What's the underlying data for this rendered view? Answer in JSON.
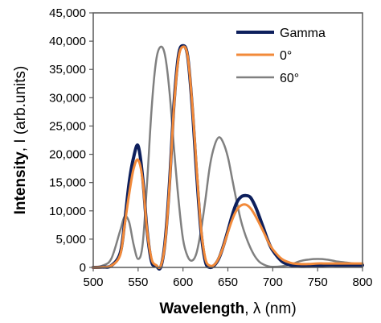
{
  "chart_data": {
    "type": "line",
    "title": "",
    "xlabel": "Wavelength",
    "xlabel_symbol": ", λ (nm)",
    "ylabel": "Intensity",
    "ylabel_symbol": ", I (arb.units)",
    "xlim": [
      500,
      800
    ],
    "ylim": [
      0,
      45000
    ],
    "x_ticks": [
      500,
      550,
      600,
      650,
      700,
      750,
      800
    ],
    "y_ticks": [
      0,
      5000,
      10000,
      15000,
      20000,
      25000,
      30000,
      35000,
      40000,
      45000
    ],
    "y_tick_labels": [
      "0",
      "5,000",
      "10,000",
      "15,000",
      "20,000",
      "25,000",
      "30,000",
      "35,000",
      "40,000",
      "45,000"
    ],
    "grid": false,
    "legend_position": "top-right",
    "x": [
      500,
      510,
      520,
      530,
      535,
      540,
      545,
      550,
      555,
      560,
      565,
      570,
      575,
      580,
      585,
      590,
      595,
      600,
      605,
      610,
      615,
      620,
      625,
      630,
      635,
      640,
      645,
      650,
      655,
      660,
      665,
      670,
      675,
      680,
      685,
      690,
      695,
      700,
      710,
      720,
      730,
      740,
      750,
      760,
      770,
      780,
      790,
      800
    ],
    "series": [
      {
        "name": "Gamma",
        "color": "#0d1f5c",
        "values": [
          0,
          50,
          300,
          2500,
          8000,
          15000,
          19500,
          21500,
          16000,
          6500,
          1000,
          300,
          0,
          4500,
          15000,
          29000,
          37500,
          39200,
          37500,
          29000,
          17000,
          6500,
          1000,
          0,
          400,
          1600,
          3800,
          6500,
          9300,
          11500,
          12500,
          12700,
          12400,
          11000,
          9000,
          6800,
          4600,
          3000,
          1100,
          400,
          200,
          200,
          300,
          400,
          400,
          400,
          400,
          400
        ]
      },
      {
        "name": "0°",
        "color": "#f28a3a",
        "values": [
          0,
          50,
          300,
          2200,
          7500,
          13000,
          17500,
          19000,
          15500,
          6500,
          1500,
          400,
          200,
          4200,
          14500,
          28500,
          37000,
          39000,
          37500,
          29500,
          18000,
          7000,
          1500,
          300,
          500,
          1700,
          3700,
          6200,
          8500,
          10200,
          11000,
          11100,
          10500,
          9300,
          7800,
          6200,
          4500,
          3200,
          1500,
          800,
          600,
          600,
          700,
          700,
          700,
          700,
          700,
          700
        ]
      },
      {
        "name": "60°",
        "color": "#808080",
        "values": [
          0,
          300,
          1500,
          6500,
          9000,
          8000,
          4000,
          1500,
          4000,
          15000,
          28000,
          36500,
          39000,
          37500,
          31000,
          21000,
          12000,
          5000,
          2000,
          1200,
          2500,
          6500,
          12000,
          18000,
          21500,
          23000,
          22000,
          19500,
          15500,
          11500,
          8000,
          5500,
          3500,
          2000,
          1000,
          500,
          200,
          100,
          200,
          500,
          1100,
          1400,
          1500,
          1400,
          1100,
          900,
          700,
          400
        ]
      }
    ]
  }
}
